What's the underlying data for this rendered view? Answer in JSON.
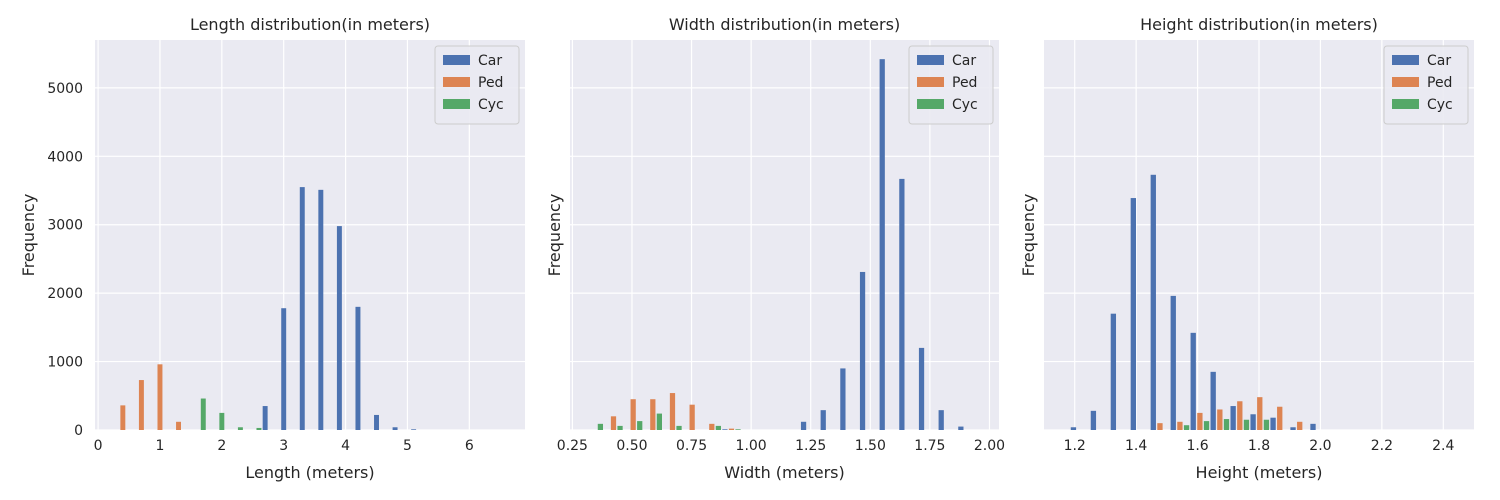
{
  "colors": {
    "Car": "#4c72b0",
    "Ped": "#dd8452",
    "Cyc": "#55a868",
    "plot_bg": "#eaeaf2"
  },
  "chart_data": [
    {
      "type": "bar",
      "title": "Length distribution(in meters)",
      "xlabel": "Length (meters)",
      "ylabel": "Frequency",
      "xlim": [
        -0.05,
        6.9
      ],
      "ylim": [
        0,
        5700
      ],
      "xticks": [
        0,
        1,
        2,
        3,
        4,
        5,
        6
      ],
      "xtick_labels": [
        "0",
        "1",
        "2",
        "3",
        "4",
        "5",
        "6"
      ],
      "yticks": [
        0,
        1000,
        2000,
        3000,
        4000,
        5000
      ],
      "ytick_labels": [
        "0",
        "1000",
        "2000",
        "3000",
        "4000",
        "5000"
      ],
      "show_ytick_labels": true,
      "legend": [
        "Car",
        "Ped",
        "Cyc"
      ],
      "legend_position": "top-right",
      "grid": true,
      "bin_width": 0.3,
      "x": [
        0.4,
        0.7,
        1.0,
        1.3,
        1.6,
        1.9,
        2.2,
        2.5,
        2.8,
        3.1,
        3.4,
        3.7,
        4.0,
        4.3,
        4.6,
        4.9,
        5.2
      ],
      "series": [
        {
          "name": "Car",
          "values": [
            0,
            0,
            0,
            0,
            0,
            0,
            0,
            0,
            350,
            1780,
            3550,
            3510,
            2980,
            1800,
            220,
            40,
            10
          ]
        },
        {
          "name": "Ped",
          "values": [
            360,
            730,
            960,
            120,
            0,
            0,
            0,
            0,
            0,
            0,
            0,
            0,
            0,
            0,
            0,
            0,
            0
          ]
        },
        {
          "name": "Cyc",
          "values": [
            0,
            0,
            0,
            0,
            460,
            250,
            40,
            30,
            0,
            0,
            0,
            0,
            0,
            0,
            0,
            0,
            0
          ]
        }
      ]
    },
    {
      "type": "bar",
      "title": "Width distribution(in meters)",
      "xlabel": "Width (meters)",
      "ylabel": "Frequency",
      "xlim": [
        0.24,
        2.04
      ],
      "ylim": [
        0,
        5700
      ],
      "xticks": [
        0.25,
        0.5,
        0.75,
        1.0,
        1.25,
        1.5,
        1.75,
        2.0
      ],
      "xtick_labels": [
        "0.25",
        "0.50",
        "0.75",
        "1.00",
        "1.25",
        "1.50",
        "1.75",
        "2.00"
      ],
      "yticks": [
        0,
        1000,
        2000,
        3000,
        4000,
        5000
      ],
      "show_ytick_labels": false,
      "legend": [
        "Car",
        "Ped",
        "Cyc"
      ],
      "legend_position": "top-right",
      "grid": true,
      "bin_width": 0.0825,
      "x": [
        0.34,
        0.4225,
        0.505,
        0.5875,
        0.67,
        0.7525,
        0.835,
        0.9175,
        1.0,
        1.0825,
        1.165,
        1.2475,
        1.33,
        1.4125,
        1.495,
        1.5775,
        1.66,
        1.7425,
        1.825,
        1.9075
      ],
      "series": [
        {
          "name": "Car",
          "values": [
            0,
            0,
            0,
            0,
            0,
            0,
            0,
            10,
            0,
            0,
            0,
            120,
            290,
            900,
            2310,
            5420,
            3670,
            1200,
            290,
            50
          ]
        },
        {
          "name": "Ped",
          "values": [
            0,
            200,
            450,
            450,
            540,
            370,
            90,
            20,
            0,
            0,
            0,
            0,
            0,
            0,
            0,
            0,
            0,
            0,
            0,
            0
          ]
        },
        {
          "name": "Cyc",
          "values": [
            90,
            60,
            130,
            240,
            60,
            0,
            60,
            10,
            0,
            0,
            0,
            0,
            0,
            0,
            0,
            0,
            0,
            0,
            0,
            0
          ]
        }
      ]
    },
    {
      "type": "bar",
      "title": "Height distribution(in meters)",
      "xlabel": "Height (meters)",
      "ylabel": "Frequency",
      "xlim": [
        1.1,
        2.5
      ],
      "ylim": [
        0,
        5700
      ],
      "xticks": [
        1.2,
        1.4,
        1.6,
        1.8,
        2.0,
        2.2,
        2.4
      ],
      "xtick_labels": [
        "1.2",
        "1.4",
        "1.6",
        "1.8",
        "2.0",
        "2.2",
        "2.4"
      ],
      "yticks": [
        0,
        1000,
        2000,
        3000,
        4000,
        5000
      ],
      "show_ytick_labels": false,
      "legend": [
        "Car",
        "Ped",
        "Cyc"
      ],
      "legend_position": "top-right",
      "grid": true,
      "bin_width": 0.065,
      "x": [
        1.2175,
        1.2825,
        1.3475,
        1.4125,
        1.4775,
        1.5425,
        1.6075,
        1.6725,
        1.7375,
        1.8025,
        1.8675,
        1.9325,
        1.9975
      ],
      "series": [
        {
          "name": "Car",
          "values": [
            40,
            280,
            1700,
            3390,
            3730,
            1960,
            1420,
            850,
            350,
            230,
            180,
            40,
            90
          ]
        },
        {
          "name": "Ped",
          "values": [
            0,
            0,
            0,
            0,
            100,
            120,
            250,
            300,
            420,
            480,
            340,
            120,
            0
          ]
        },
        {
          "name": "Cyc",
          "values": [
            0,
            0,
            0,
            0,
            0,
            70,
            130,
            160,
            150,
            150,
            0,
            0,
            0
          ]
        }
      ]
    }
  ]
}
